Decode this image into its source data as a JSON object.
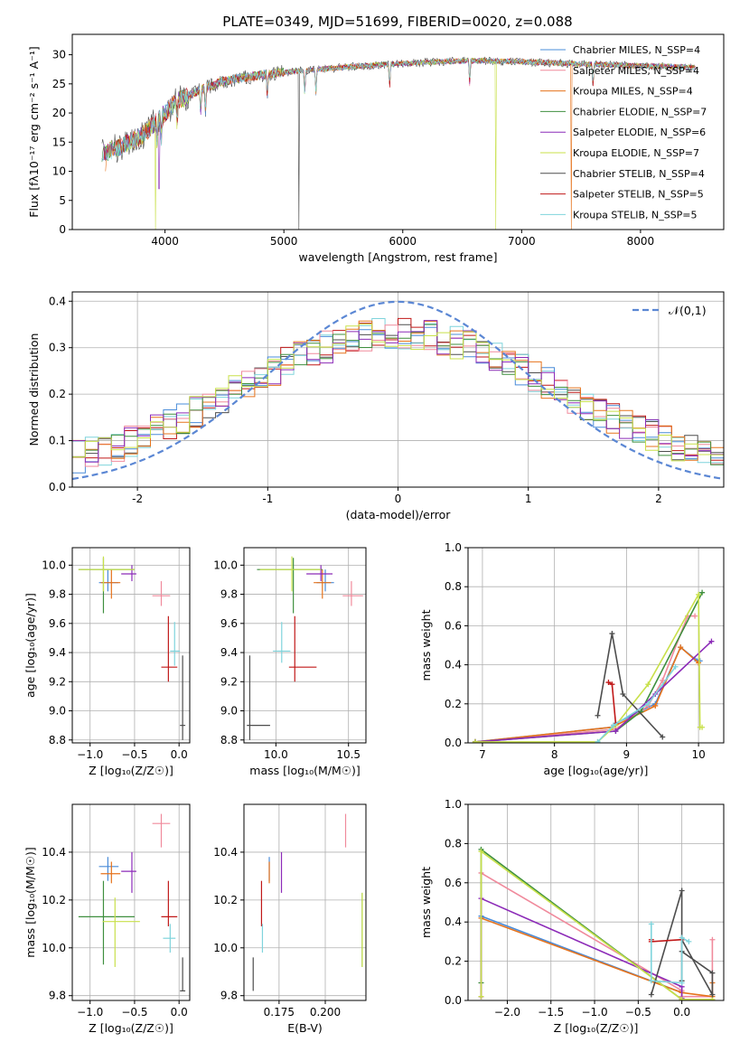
{
  "figure_title": "PLATE=0349, MJD=51699, FIBERID=0020, z=0.088",
  "colors": [
    "#4a8cd9",
    "#f08a9c",
    "#e6731c",
    "#3f8f3f",
    "#8c2bb8",
    "#c8e04a",
    "#4d4d4d",
    "#c01818",
    "#7fd4dc"
  ],
  "chart_data": [
    {
      "id": "spectrum",
      "type": "line",
      "title": "PLATE=0349, MJD=51699, FIBERID=0020, z=0.088",
      "xlabel": "wavelength [Angstrom, rest frame]",
      "ylabel": "Flux [fλ10⁻¹⁷ erg cm⁻² s⁻¹ A⁻¹]",
      "xlim": [
        3220,
        8700
      ],
      "ylim": [
        0,
        33.5
      ],
      "xticks": [
        4000,
        5000,
        6000,
        7000,
        8000
      ],
      "yticks": [
        0,
        5,
        10,
        15,
        20,
        25,
        30
      ],
      "grid": false,
      "legend_position": "right",
      "legend": [
        "Chabrier MILES, N_SSP=4",
        "Salpeter MILES, N_SSP=4",
        "Kroupa MILES, N_SSP=4",
        "Chabrier ELODIE, N_SSP=7",
        "Salpeter ELODIE, N_SSP=6",
        "Kroupa ELODIE, N_SSP=7",
        "Chabrier STELIB, N_SSP=4",
        "Salpeter STELIB, N_SSP=5",
        "Kroupa STELIB, N_SSP=5"
      ],
      "continuum_x": [
        3470,
        3600,
        3800,
        3950,
        4100,
        4300,
        4500,
        4800,
        5000,
        5300,
        5600,
        6000,
        6300,
        6600,
        7000,
        7400,
        7800,
        8200,
        8450
      ],
      "continuum_y": [
        13,
        14,
        16,
        19,
        22,
        24,
        25.5,
        26.5,
        27,
        27.5,
        28,
        28.5,
        28.8,
        29,
        28.8,
        28.5,
        28.2,
        28,
        27.8
      ],
      "dropouts": [
        [
          3500,
          1
        ],
        [
          3920,
          0
        ],
        [
          5125,
          0
        ],
        [
          6780,
          0
        ],
        [
          7420,
          0
        ],
        [
          7060,
          10
        ]
      ]
    },
    {
      "id": "residuals",
      "type": "histogram",
      "xlabel": "(data-model)/error",
      "ylabel": "Normed distribution",
      "xlim": [
        -2.5,
        2.5
      ],
      "ylim": [
        0,
        0.42
      ],
      "xticks": [
        -2,
        -1,
        0,
        1,
        2
      ],
      "yticks": [
        0.0,
        0.1,
        0.2,
        0.3,
        0.4
      ],
      "grid": true,
      "legend": [
        "𝒩(0,1)"
      ],
      "legend_position": "top-right",
      "bin_width": 0.1,
      "gaussian": {
        "mean": 0,
        "sigma": 1
      }
    },
    {
      "id": "age_vs_Z",
      "type": "errorbar",
      "xlabel": "Z [log₁₀(Z/Z☉)]",
      "ylabel": "age  [log₁₀(age/yr)]",
      "xlim": [
        -1.2,
        0.12
      ],
      "ylim": [
        8.78,
        10.12
      ],
      "xticks": [
        -1.0,
        -0.5,
        0.0
      ],
      "xtick_labels": [
        "−1.0",
        "−0.5",
        "0.0"
      ],
      "yticks": [
        8.8,
        9.0,
        9.2,
        9.4,
        9.6,
        9.8,
        10.0
      ],
      "grid": true,
      "points": [
        {
          "x": -0.8,
          "y": 9.88,
          "xerr": [
            0.1,
            0.12
          ],
          "yerr": [
            0.06,
            0.09
          ]
        },
        {
          "x": -0.2,
          "y": 9.79,
          "xerr": [
            0.1,
            0.1
          ],
          "yerr": [
            0.07,
            0.1
          ]
        },
        {
          "x": -0.76,
          "y": 9.88,
          "xerr": [
            0.12,
            0.1
          ],
          "yerr": [
            0.11,
            0.09
          ]
        },
        {
          "x": -0.85,
          "y": 9.97,
          "xerr": [
            0.28,
            0.35
          ],
          "yerr": [
            0.3,
            0.08
          ]
        },
        {
          "x": -0.53,
          "y": 9.94,
          "xerr": [
            0.12,
            0.05
          ],
          "yerr": [
            0.05,
            0.06
          ]
        },
        {
          "x": -0.85,
          "y": 9.97,
          "xerr": [
            0.28,
            0.35
          ],
          "yerr": [
            0.15,
            0.09
          ]
        },
        {
          "x": 0.04,
          "y": 8.9,
          "xerr": [
            0.03,
            0.03
          ],
          "yerr": [
            0.1,
            0.48
          ]
        },
        {
          "x": -0.12,
          "y": 9.3,
          "xerr": [
            0.08,
            0.1
          ],
          "yerr": [
            0.1,
            0.35
          ]
        },
        {
          "x": -0.05,
          "y": 9.41,
          "xerr": [
            0.05,
            0.06
          ],
          "yerr": [
            0.1,
            0.2
          ]
        }
      ]
    },
    {
      "id": "age_vs_mass",
      "type": "errorbar",
      "xlabel": "mass [log₁₀(M/M☉)]",
      "xlim": [
        9.78,
        10.62
      ],
      "ylim": [
        8.78,
        10.12
      ],
      "xticks": [
        10.0,
        10.5
      ],
      "xtick_labels": [
        "10.0",
        "10.5"
      ],
      "yticks": [
        8.8,
        9.0,
        9.2,
        9.4,
        9.6,
        9.8,
        10.0
      ],
      "grid": true,
      "points": [
        {
          "x": 10.34,
          "y": 9.88,
          "xerr": [
            0.06,
            0.06
          ],
          "yerr": [
            0.06,
            0.09
          ]
        },
        {
          "x": 10.52,
          "y": 9.79,
          "xerr": [
            0.06,
            0.08
          ],
          "yerr": [
            0.07,
            0.1
          ]
        },
        {
          "x": 10.32,
          "y": 9.88,
          "xerr": [
            0.06,
            0.06
          ],
          "yerr": [
            0.11,
            0.09
          ]
        },
        {
          "x": 10.12,
          "y": 9.97,
          "xerr": [
            0.25,
            0.2
          ],
          "yerr": [
            0.3,
            0.08
          ]
        },
        {
          "x": 10.31,
          "y": 9.94,
          "xerr": [
            0.1,
            0.08
          ],
          "yerr": [
            0.05,
            0.06
          ]
        },
        {
          "x": 10.11,
          "y": 9.97,
          "xerr": [
            0.22,
            0.2
          ],
          "yerr": [
            0.15,
            0.09
          ]
        },
        {
          "x": 9.82,
          "y": 8.9,
          "xerr": [
            0.02,
            0.14
          ],
          "yerr": [
            0.1,
            0.48
          ]
        },
        {
          "x": 10.13,
          "y": 9.3,
          "xerr": [
            0.04,
            0.15
          ],
          "yerr": [
            0.1,
            0.35
          ]
        },
        {
          "x": 10.04,
          "y": 9.41,
          "xerr": [
            0.06,
            0.06
          ],
          "yerr": [
            0.08,
            0.2
          ]
        }
      ]
    },
    {
      "id": "weight_vs_age",
      "type": "line",
      "xlabel": "age  [log₁₀(age/yr)]",
      "ylabel": "mass weight",
      "xlim": [
        6.8,
        10.35
      ],
      "ylim": [
        0,
        1
      ],
      "xticks": [
        7,
        8,
        9,
        10
      ],
      "yticks": [
        0.0,
        0.2,
        0.4,
        0.6,
        0.8,
        1.0
      ],
      "grid": true,
      "series": [
        {
          "x": [
            6.9,
            8.8,
            8.85,
            9.4,
            9.75,
            9.95,
            10.02
          ],
          "y": [
            0.005,
            0.08,
            0.1,
            0.2,
            0.49,
            0.43,
            0.42
          ]
        },
        {
          "x": [
            6.9,
            8.85,
            9.3,
            9.5,
            9.85,
            9.95
          ],
          "y": [
            0.005,
            0.07,
            0.19,
            0.32,
            0.65,
            0.65
          ]
        },
        {
          "x": [
            6.9,
            8.8,
            8.85,
            9.4,
            9.75,
            10.0
          ],
          "y": [
            0.005,
            0.08,
            0.09,
            0.19,
            0.49,
            0.41
          ]
        },
        {
          "x": [
            6.9,
            8.85,
            9.2,
            10.05
          ],
          "y": [
            0.005,
            0.06,
            0.16,
            0.77
          ]
        },
        {
          "x": [
            6.9,
            8.85,
            9.4,
            10.18
          ],
          "y": [
            0.005,
            0.06,
            0.25,
            0.52
          ]
        },
        {
          "x": [
            6.9,
            8.6,
            8.85,
            9.3,
            10.0,
            10.02,
            10.05
          ],
          "y": [
            0.005,
            0.005,
            0.09,
            0.3,
            0.76,
            0.08,
            0.08
          ]
        },
        {
          "x": [
            8.6,
            8.8,
            8.95,
            9.5
          ],
          "y": [
            0.14,
            0.56,
            0.25,
            0.03
          ]
        },
        {
          "x": [
            8.75,
            8.8,
            8.85
          ],
          "y": [
            0.31,
            0.3,
            0.1
          ]
        },
        {
          "x": [
            8.6,
            8.82,
            9.3,
            9.68
          ],
          "y": [
            0.005,
            0.09,
            0.2,
            0.39
          ]
        }
      ]
    },
    {
      "id": "mass_vs_Z",
      "type": "errorbar",
      "xlabel": "Z [log₁₀(Z/Z☉)]",
      "ylabel": "mass [log₁₀(M/M☉)]",
      "xlim": [
        -1.2,
        0.12
      ],
      "ylim": [
        9.78,
        10.6
      ],
      "xticks": [
        -1.0,
        -0.5,
        0.0
      ],
      "xtick_labels": [
        "−1.0",
        "−0.5",
        "0.0"
      ],
      "yticks": [
        9.8,
        10.0,
        10.2,
        10.4
      ],
      "grid": true,
      "points": [
        {
          "x": -0.8,
          "y": 10.34,
          "xerr": [
            0.1,
            0.12
          ],
          "yerr": [
            0.06,
            0.04
          ]
        },
        {
          "x": -0.2,
          "y": 10.52,
          "xerr": [
            0.1,
            0.1
          ],
          "yerr": [
            0.1,
            0.04
          ]
        },
        {
          "x": -0.76,
          "y": 10.31,
          "xerr": [
            0.12,
            0.1
          ],
          "yerr": [
            0.04,
            0.05
          ]
        },
        {
          "x": -0.85,
          "y": 10.13,
          "xerr": [
            0.28,
            0.35
          ],
          "yerr": [
            0.2,
            0.15
          ]
        },
        {
          "x": -0.53,
          "y": 10.32,
          "xerr": [
            0.12,
            0.05
          ],
          "yerr": [
            0.09,
            0.08
          ]
        },
        {
          "x": -0.72,
          "y": 10.11,
          "xerr": [
            0.14,
            0.28
          ],
          "yerr": [
            0.19,
            0.1
          ]
        },
        {
          "x": 0.04,
          "y": 9.82,
          "xerr": [
            0.03,
            0.03
          ],
          "yerr": [
            0.0,
            0.14
          ]
        },
        {
          "x": -0.12,
          "y": 10.13,
          "xerr": [
            0.08,
            0.1
          ],
          "yerr": [
            0.04,
            0.15
          ]
        },
        {
          "x": -0.1,
          "y": 10.04,
          "xerr": [
            0.08,
            0.06
          ],
          "yerr": [
            0.06,
            0.06
          ]
        }
      ]
    },
    {
      "id": "mass_vs_EBV",
      "type": "errorbar",
      "xlabel": "E(B-V)",
      "xlim": [
        0.156,
        0.222
      ],
      "ylim": [
        9.78,
        10.6
      ],
      "xticks": [
        0.175,
        0.2
      ],
      "xtick_labels": [
        "0.175",
        "0.200"
      ],
      "yticks": [
        9.8,
        10.0,
        10.2,
        10.4
      ],
      "grid": true,
      "points": [
        {
          "x": 0.1697,
          "y": 10.34,
          "xerr": [
            0,
            0
          ],
          "yerr": [
            0.06,
            0.04
          ]
        },
        {
          "x": 0.211,
          "y": 10.52,
          "xerr": [
            0,
            0
          ],
          "yerr": [
            0.1,
            0.04
          ]
        },
        {
          "x": 0.1697,
          "y": 10.31,
          "xerr": [
            0,
            0
          ],
          "yerr": [
            0.04,
            0.05
          ]
        },
        {
          "x": 0.22,
          "y": 10.1,
          "xerr": [
            0,
            0
          ],
          "yerr": [
            0.18,
            0.13
          ]
        },
        {
          "x": 0.1763,
          "y": 10.32,
          "xerr": [
            0,
            0
          ],
          "yerr": [
            0.09,
            0.08
          ]
        },
        {
          "x": 0.22,
          "y": 10.1,
          "xerr": [
            0,
            0
          ],
          "yerr": [
            0.18,
            0.13
          ]
        },
        {
          "x": 0.161,
          "y": 9.82,
          "xerr": [
            0,
            0
          ],
          "yerr": [
            0.0,
            0.14
          ]
        },
        {
          "x": 0.1655,
          "y": 10.13,
          "xerr": [
            0,
            0
          ],
          "yerr": [
            0.04,
            0.15
          ]
        },
        {
          "x": 0.166,
          "y": 10.04,
          "xerr": [
            0,
            0
          ],
          "yerr": [
            0.06,
            0.06
          ]
        }
      ]
    },
    {
      "id": "weight_vs_Z",
      "type": "line",
      "xlabel": "Z [log₁₀(Z/Z☉)]",
      "ylabel": "mass weight",
      "xlim": [
        -2.45,
        0.48
      ],
      "ylim": [
        0,
        1
      ],
      "xticks": [
        -2.0,
        -1.5,
        -1.0,
        -0.5,
        0.0
      ],
      "xtick_labels": [
        "−2.0",
        "−1.5",
        "−1.0",
        "−0.5",
        "0.0"
      ],
      "yticks": [
        0.0,
        0.2,
        0.4,
        0.6,
        0.8,
        1.0
      ],
      "grid": true,
      "series": [
        {
          "x": [
            -2.3,
            -2.3,
            0.0,
            0.0
          ],
          "y": [
            0.02,
            0.43,
            0.04,
            0.02
          ]
        },
        {
          "x": [
            -2.3,
            -2.3,
            0.0,
            0.0,
            0.35,
            0.35
          ],
          "y": [
            0.02,
            0.65,
            0.05,
            0.02,
            0.02,
            0.31
          ]
        },
        {
          "x": [
            -2.3,
            -2.3,
            0.0,
            0.35,
            0.35
          ],
          "y": [
            0.02,
            0.42,
            0.04,
            0.02,
            0.09
          ]
        },
        {
          "x": [
            -2.3,
            -2.3,
            0.0
          ],
          "y": [
            0.09,
            0.77,
            0.005
          ]
        },
        {
          "x": [
            -2.3,
            -2.3,
            0.0,
            0.0
          ],
          "y": [
            0.02,
            0.52,
            0.07,
            0.01
          ]
        },
        {
          "x": [
            -2.3,
            -2.3,
            0.0,
            0.35
          ],
          "y": [
            0.02,
            0.76,
            0.005,
            0.005
          ]
        },
        {
          "x": [
            -0.35,
            0.0,
            0.0,
            0.35,
            0.35,
            0.0,
            0.0
          ],
          "y": [
            0.03,
            0.56,
            0.25,
            0.14,
            0.03,
            0.31,
            0.1
          ]
        },
        {
          "x": [
            -0.35,
            -0.35,
            0.0
          ],
          "y": [
            0.31,
            0.3,
            0.31
          ]
        },
        {
          "x": [
            -0.35,
            -0.35,
            0.0,
            0.0,
            0.08
          ],
          "y": [
            0.39,
            0.1,
            0.09,
            0.32,
            0.3
          ]
        }
      ]
    }
  ]
}
